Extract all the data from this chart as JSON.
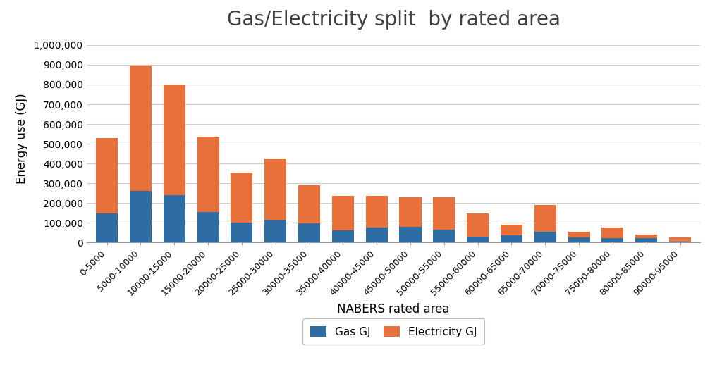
{
  "title": "Gas/Electricity split  by rated area",
  "xlabel": "NABERS rated area",
  "ylabel": "Energy use (GJ)",
  "categories": [
    "0-5000",
    "5000-10000",
    "10000-15000",
    "15000-20000",
    "20000-25000",
    "25000-30000",
    "30000-35000",
    "35000-40000",
    "40000-45000",
    "45000-50000",
    "50000-55000",
    "55000-60000",
    "60000-65000",
    "65000-70000",
    "70000-75000",
    "75000-80000",
    "80000-85000",
    "90000-95000"
  ],
  "gas_values": [
    145000,
    260000,
    240000,
    155000,
    100000,
    115000,
    95000,
    60000,
    75000,
    80000,
    65000,
    30000,
    35000,
    55000,
    25000,
    20000,
    20000,
    5000
  ],
  "electricity_values": [
    385000,
    635000,
    560000,
    380000,
    255000,
    310000,
    195000,
    175000,
    160000,
    150000,
    165000,
    115000,
    55000,
    135000,
    30000,
    55000,
    20000,
    20000
  ],
  "gas_color": "#2E6DA4",
  "electricity_color": "#E8703A",
  "ylim": [
    0,
    1050000
  ],
  "yticks": [
    0,
    100000,
    200000,
    300000,
    400000,
    500000,
    600000,
    700000,
    800000,
    900000,
    1000000
  ],
  "background_color": "#ffffff",
  "grid_color": "#cccccc",
  "title_fontsize": 20,
  "axis_label_fontsize": 12,
  "tick_fontsize": 9,
  "legend_labels": [
    "Gas GJ",
    "Electricity GJ"
  ]
}
